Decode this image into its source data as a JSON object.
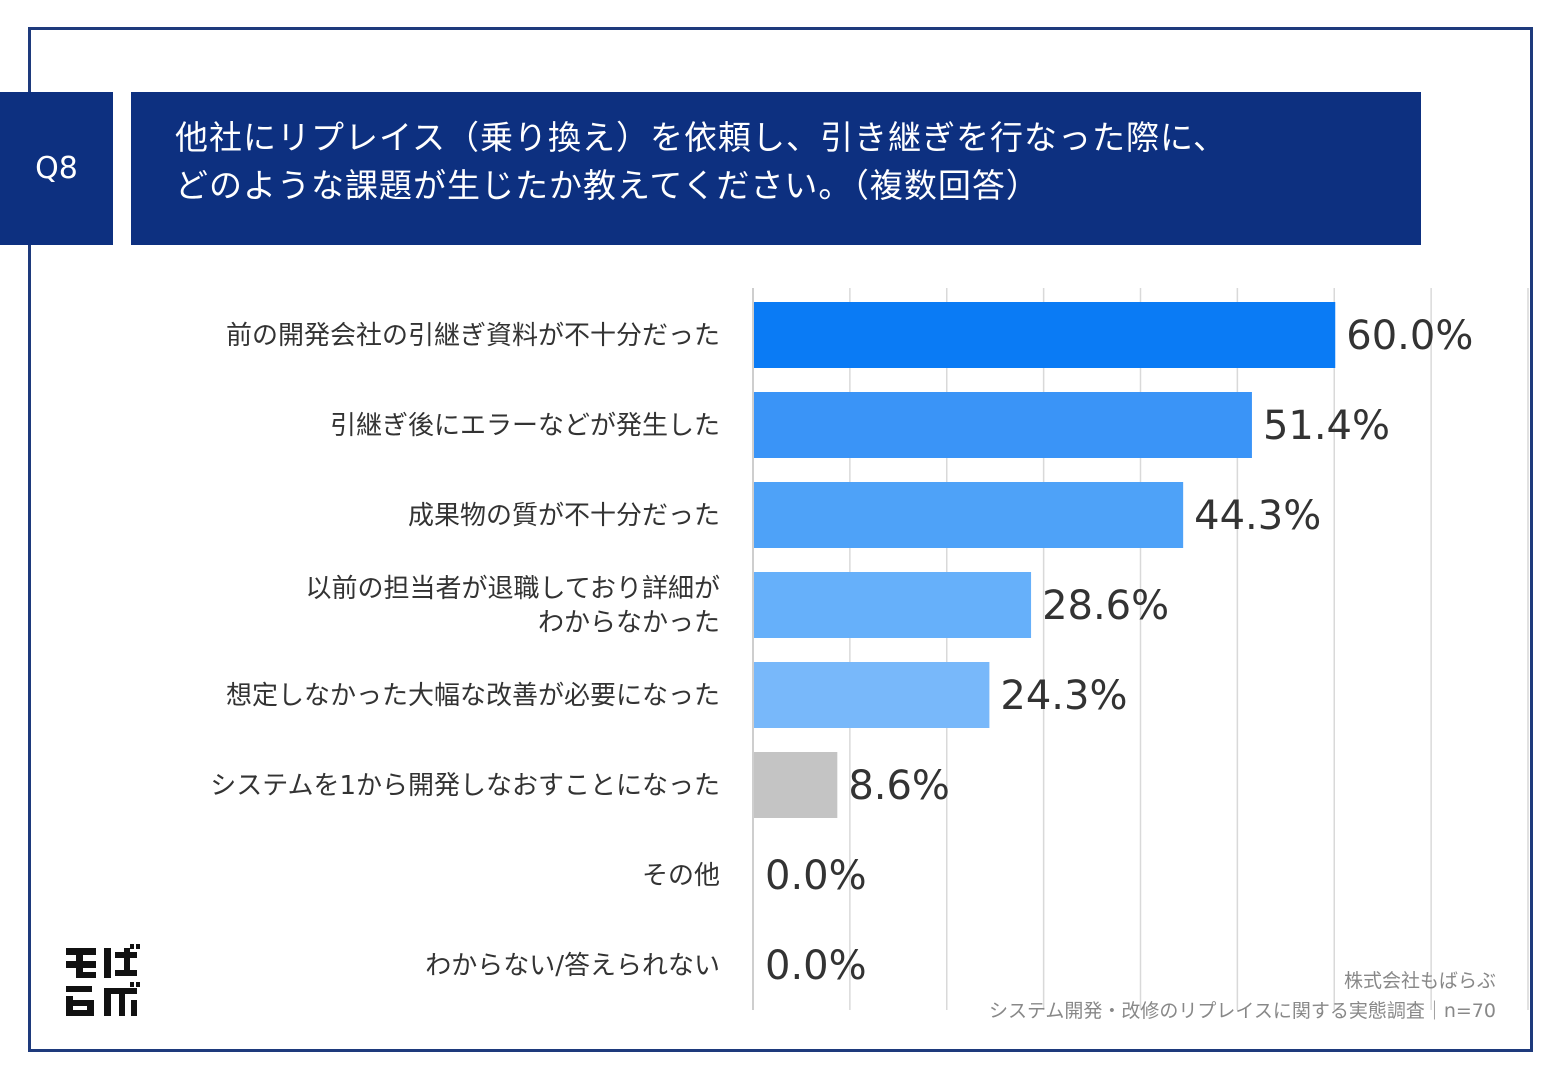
{
  "header": {
    "question_no": "Q8",
    "title_lines": [
      "他社にリプレイス（乗り換え）を依頼し、引き継ぎを行なった際に、",
      "どのような課題が生じたか教えてください。（複数回答）"
    ]
  },
  "chart_data": {
    "type": "bar",
    "orientation": "horizontal",
    "categories": [
      [
        "前の開発会社の引継ぎ資料が不十分だった"
      ],
      [
        "引継ぎ後にエラーなどが発生した"
      ],
      [
        "成果物の質が不十分だった"
      ],
      [
        "以前の担当者が退職しており詳細が",
        "わからなかった"
      ],
      [
        "想定しなかった大幅な改善が必要になった"
      ],
      [
        "システムを1から開発しなおすことになった"
      ],
      [
        "その他"
      ],
      [
        "わからない/答えられない"
      ]
    ],
    "values": [
      60.0,
      51.4,
      44.3,
      28.6,
      24.3,
      8.6,
      0.0,
      0.0
    ],
    "value_labels": [
      "60.0%",
      "51.4%",
      "44.3%",
      "28.6%",
      "24.3%",
      "8.6%",
      "0.0%",
      "0.0%"
    ],
    "colors": [
      "#0a7bf5",
      "#3a94f7",
      "#4ea2f8",
      "#66b0fa",
      "#78b8fa",
      "#c4c4c4",
      "#c4c4c4",
      "#c4c4c4"
    ],
    "xlim": [
      0,
      80
    ],
    "grid": true,
    "legend": "none"
  },
  "footer": {
    "company": "株式会社もばらぶ",
    "survey": "システム開発・改修のリプレイスに関する実態調査｜n=70"
  },
  "logo": {
    "text": "もばらぶ",
    "color": "#111111"
  }
}
